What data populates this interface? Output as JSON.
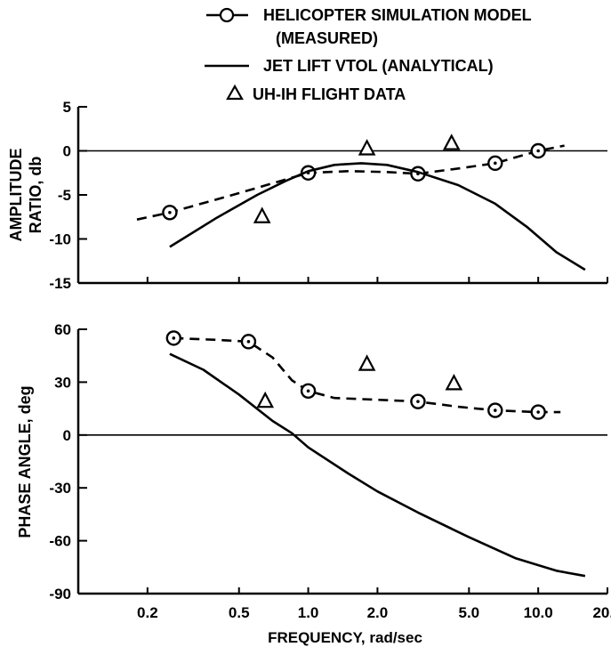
{
  "chart_data": [
    {
      "type": "line",
      "xscale": "log",
      "xlim": [
        0.1,
        20.0
      ],
      "ylim": [
        -15,
        5
      ],
      "ylabel": [
        "AMPLITUDE",
        "RATIO, db"
      ],
      "yticks": [
        5,
        0,
        -5,
        -10,
        -15
      ],
      "grid": false,
      "zero_line": true,
      "series": [
        {
          "name": "HELICOPTER SIMULATION MODEL (MEASURED)",
          "style": "dashed-circles",
          "x": [
            0.25,
            1.0,
            3.0,
            6.5,
            10.0
          ],
          "y": [
            -7.0,
            -2.5,
            -2.6,
            -1.4,
            0.0
          ],
          "curve_x": [
            0.18,
            0.25,
            0.5,
            1.0,
            1.5,
            2.2,
            3.0,
            4.5,
            6.5,
            10.0,
            13.0
          ],
          "curve_y": [
            -7.8,
            -7.0,
            -4.8,
            -2.5,
            -2.3,
            -2.4,
            -2.6,
            -2.0,
            -1.4,
            0.0,
            0.6
          ]
        },
        {
          "name": "JET LIFT VTOL (ANALYTICAL)",
          "style": "solid",
          "x": [
            0.25,
            0.4,
            0.6,
            0.8,
            1.0,
            1.3,
            1.7,
            2.2,
            3.0,
            4.5,
            6.5,
            9.0,
            12.0,
            16.0
          ],
          "y": [
            -10.9,
            -7.6,
            -5.0,
            -3.4,
            -2.3,
            -1.6,
            -1.4,
            -1.6,
            -2.4,
            -3.9,
            -6.0,
            -8.7,
            -11.5,
            -13.5
          ]
        },
        {
          "name": "UH-IH FLIGHT DATA",
          "style": "triangles",
          "x": [
            0.63,
            1.8,
            4.2
          ],
          "y": [
            -7.5,
            0.2,
            0.8
          ]
        }
      ]
    },
    {
      "type": "line",
      "xscale": "log",
      "xlim": [
        0.1,
        20.0
      ],
      "ylim": [
        -90,
        60
      ],
      "xlabel": "FREQUENCY, rad/sec",
      "ylabel": "PHASE ANGLE, deg",
      "yticks": [
        60,
        30,
        0,
        -30,
        -60,
        -90
      ],
      "xtick_values": [
        0.2,
        0.5,
        1.0,
        2.0,
        5.0,
        10.0,
        20.0
      ],
      "xtick_labels": [
        "0.2",
        "0.5",
        "1.0",
        "2.0",
        "5.0",
        "10.0",
        "20.0"
      ],
      "grid": false,
      "zero_line": true,
      "series": [
        {
          "name": "HELICOPTER SIMULATION MODEL (MEASURED)",
          "style": "dashed-circles",
          "x": [
            0.26,
            0.55,
            1.0,
            3.0,
            6.5,
            10.0
          ],
          "y": [
            55,
            53,
            25,
            19,
            14,
            13
          ],
          "curve_x": [
            0.26,
            0.4,
            0.55,
            0.7,
            0.85,
            1.0,
            1.3,
            2.0,
            3.0,
            4.5,
            6.5,
            10.0,
            12.5
          ],
          "curve_y": [
            55,
            54,
            53,
            44,
            31,
            25,
            21,
            20,
            19,
            16,
            14,
            13,
            13
          ]
        },
        {
          "name": "JET LIFT VTOL (ANALYTICAL)",
          "style": "solid",
          "x": [
            0.25,
            0.35,
            0.5,
            0.7,
            0.85,
            1.0,
            1.5,
            2.0,
            3.0,
            5.0,
            8.0,
            12.0,
            16.0
          ],
          "y": [
            46,
            37,
            23,
            8,
            1,
            -7,
            -22,
            -32,
            -44,
            -58,
            -70,
            -77,
            -80
          ]
        },
        {
          "name": "UH-IH FLIGHT DATA",
          "style": "triangles",
          "x": [
            0.65,
            1.8,
            4.3
          ],
          "y": [
            19,
            40,
            29
          ]
        }
      ]
    }
  ],
  "legend": [
    {
      "symbol": "circle-line",
      "label_lines": [
        "HELICOPTER SIMULATION MODEL",
        "(MEASURED)"
      ]
    },
    {
      "symbol": "solid-line",
      "label_lines": [
        "JET LIFT VTOL (ANALYTICAL)"
      ]
    },
    {
      "symbol": "triangle",
      "label_lines": [
        "UH-IH FLIGHT DATA"
      ]
    }
  ]
}
